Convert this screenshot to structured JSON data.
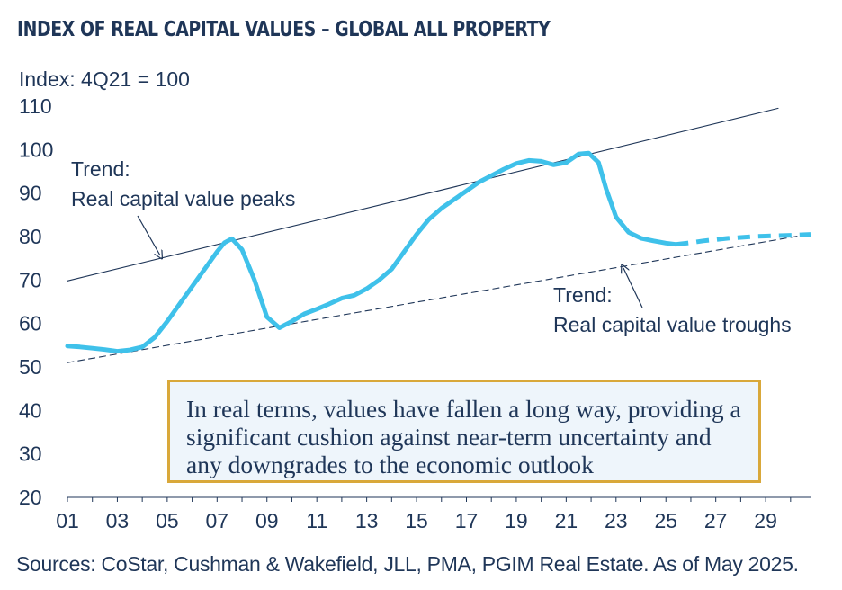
{
  "header": {
    "title": "INDEX OF REAL CAPITAL VALUES – GLOBAL ALL PROPERTY"
  },
  "chart_data": {
    "type": "line",
    "title": "INDEX OF REAL CAPITAL VALUES – GLOBAL ALL PROPERTY",
    "ylabel": "Index: 4Q21 = 100",
    "xlabel": "",
    "ylim": [
      20,
      110
    ],
    "xlim": [
      2001,
      2030.8
    ],
    "yticks": [
      110,
      100,
      90,
      80,
      70,
      60,
      50,
      40,
      30,
      20
    ],
    "xtick_labels": [
      "01",
      "03",
      "05",
      "07",
      "09",
      "11",
      "13",
      "15",
      "17",
      "19",
      "21",
      "23",
      "25",
      "27",
      "29"
    ],
    "grid": false,
    "series": [
      {
        "name": "Real capital values (actual)",
        "style": "solid",
        "color": "#3fc1ea",
        "x": [
          2001.0,
          2001.5,
          2002.0,
          2002.5,
          2003.0,
          2003.5,
          2004.0,
          2004.5,
          2005.0,
          2005.5,
          2006.0,
          2006.5,
          2007.0,
          2007.3,
          2007.6,
          2008.0,
          2008.5,
          2009.0,
          2009.5,
          2010.0,
          2010.5,
          2011.0,
          2011.5,
          2012.0,
          2012.5,
          2013.0,
          2013.5,
          2014.0,
          2014.5,
          2015.0,
          2015.5,
          2016.0,
          2016.5,
          2017.0,
          2017.5,
          2018.0,
          2018.5,
          2019.0,
          2019.5,
          2020.0,
          2020.5,
          2021.0,
          2021.5,
          2021.9,
          2022.3,
          2022.6,
          2023.0,
          2023.5,
          2024.0,
          2024.5,
          2025.0,
          2025.4
        ],
        "values": [
          54.8,
          54.6,
          54.3,
          54.0,
          53.6,
          53.9,
          54.6,
          56.8,
          60.5,
          64.5,
          68.5,
          72.5,
          76.5,
          78.6,
          79.5,
          77.0,
          70.0,
          61.5,
          59.0,
          60.5,
          62.2,
          63.3,
          64.5,
          65.8,
          66.5,
          68.0,
          70.0,
          72.5,
          76.5,
          80.5,
          84.0,
          86.5,
          88.5,
          90.5,
          92.5,
          94.0,
          95.5,
          96.8,
          97.5,
          97.3,
          96.5,
          97.0,
          99.0,
          99.2,
          97.0,
          91.0,
          84.5,
          81.0,
          79.6,
          79.0,
          78.5,
          78.2
        ]
      },
      {
        "name": "Real capital values (projected)",
        "style": "dashed",
        "color": "#3fc1ea",
        "x": [
          2025.4,
          2026.0,
          2026.5,
          2027.0,
          2027.5,
          2028.0,
          2028.5,
          2029.0,
          2029.5,
          2030.0,
          2030.8
        ],
        "values": [
          78.2,
          78.6,
          79.0,
          79.3,
          79.6,
          79.8,
          80.0,
          80.1,
          80.2,
          80.3,
          80.5
        ]
      },
      {
        "name": "Trend: Real capital value peaks",
        "style": "solid-thin",
        "color": "#1f3658",
        "x": [
          2001.0,
          2029.5
        ],
        "values": [
          69.8,
          109.5
        ]
      },
      {
        "name": "Trend: Real capital value troughs",
        "style": "dashed-thin",
        "color": "#1f3658",
        "x": [
          2001.0,
          2030.8
        ],
        "values": [
          51.0,
          80.6
        ]
      }
    ],
    "annotations": {
      "peaks_line1": "Trend:",
      "peaks_line2": "Real capital value peaks",
      "troughs_line1": "Trend:",
      "troughs_line2": "Real capital value troughs"
    }
  },
  "callout": {
    "text": "In real terms, values have fallen a long way, providing a significant cushion against near-term uncertainty and any downgrades to the economic outlook"
  },
  "footer": {
    "source": "Sources: CoStar, Cushman & Wakefield, JLL, PMA, PGIM Real Estate. As of May 2025."
  }
}
